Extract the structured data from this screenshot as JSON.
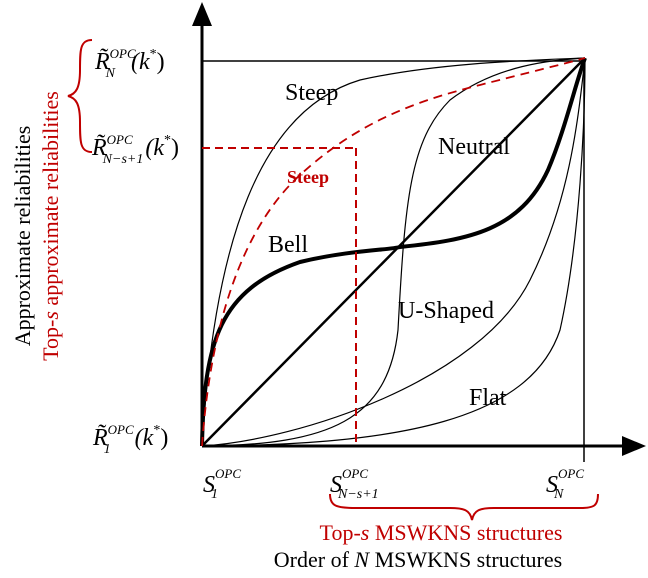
{
  "colors": {
    "accent": "#c00000",
    "ink": "#000000"
  },
  "curve_labels": {
    "steep": "Steep",
    "neutral": "Neutral",
    "steep_red": "Steep",
    "bell": "Bell",
    "u_shaped": "U-Shaped",
    "flat": "Flat"
  },
  "y_axis": {
    "label": "Approximate reliabilities",
    "top_s_label_prefix": "Top-",
    "top_s_label_s": "s",
    "top_s_label_suffix": " approximate reliabilities",
    "tick_top": {
      "symbol": "R̃",
      "sup": "OPC",
      "sub": "N",
      "arg": "(k",
      "star": "*",
      "close": ")"
    },
    "tick_mid": {
      "symbol": "R̃",
      "sup": "OPC",
      "sub": "N−s+1",
      "arg": "(k",
      "star": "*",
      "close": ")"
    },
    "tick_bottom": {
      "symbol": "R̃",
      "sup": "OPC",
      "sub": "1",
      "arg": "(k",
      "star": "*",
      "close": ")"
    }
  },
  "x_axis": {
    "label_prefix": "Order of ",
    "label_n": "N",
    "label_suffix": " MSWKNS structures",
    "top_s_prefix": "Top-",
    "top_s_s": "s",
    "top_s_suffix": " MSWKNS structures",
    "tick_first": {
      "symbol": "S",
      "sup": "OPC",
      "sub": "1"
    },
    "tick_mid": {
      "symbol": "S",
      "sup": "OPC",
      "sub": "N−s+1"
    },
    "tick_last": {
      "symbol": "S",
      "sup": "OPC",
      "sub": "N"
    }
  }
}
